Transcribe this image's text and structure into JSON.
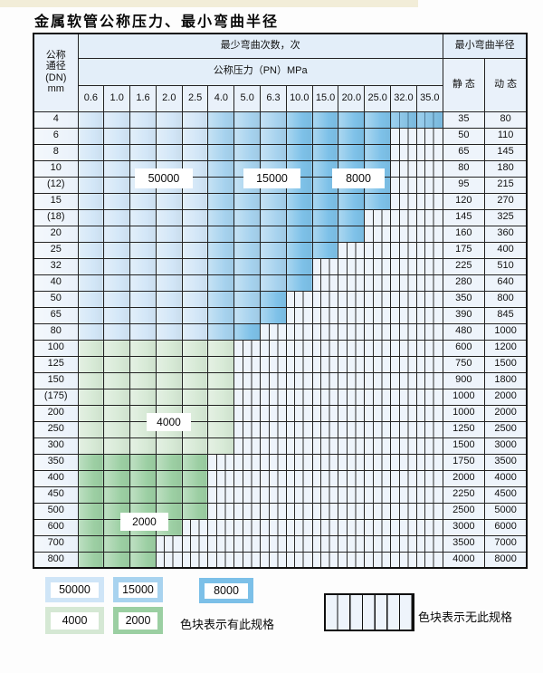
{
  "title": "金属软管公称压力、最小弯曲半径",
  "colors": {
    "cycles_50000": "#cfe5f7",
    "cycles_15000": "#a8d3ef",
    "cycles_8000": "#7cc0e8",
    "cycles_4000": "#d5e8d4",
    "cycles_2000": "#9bcfa2",
    "no_spec_bg": "#eef4fb",
    "grid_line": "#232323"
  },
  "table": {
    "dn_header_lines": [
      "公称",
      "通径",
      "(DN)",
      "mm"
    ],
    "cycles_header": "最少弯曲次数，次",
    "pressure_header": "公称压力（PN）MPa",
    "radius_header": "最小弯曲半径",
    "static_header": "静 态",
    "dynamic_header": "动 态",
    "pressure_columns": [
      "0.6",
      "1.0",
      "1.6",
      "2.0",
      "2.5",
      "4.0",
      "5.0",
      "6.3",
      "10.0",
      "15.0",
      "20.0",
      "25.0",
      "32.0",
      "35.0"
    ],
    "shade_codes": {
      "A": "50000 cycles",
      "B": "15000 cycles",
      "C": "8000 cycles",
      "G": "4000 cycles",
      "H": "2000 cycles",
      "X": "no specification (striped)"
    },
    "rows": [
      {
        "dn": "4",
        "bands": [
          [
            "A",
            5
          ],
          [
            "B",
            3
          ],
          [
            "C",
            6
          ]
        ],
        "overlay_cols": [
          12,
          13
        ],
        "static": "35",
        "dynamic": "80"
      },
      {
        "dn": "6",
        "bands": [
          [
            "A",
            5
          ],
          [
            "B",
            3
          ],
          [
            "C",
            4
          ],
          [
            "X",
            2
          ]
        ],
        "static": "50",
        "dynamic": "110"
      },
      {
        "dn": "8",
        "bands": [
          [
            "A",
            5
          ],
          [
            "B",
            3
          ],
          [
            "C",
            4
          ],
          [
            "X",
            2
          ]
        ],
        "static": "65",
        "dynamic": "145"
      },
      {
        "dn": "10",
        "bands": [
          [
            "A",
            5
          ],
          [
            "B",
            3
          ],
          [
            "C",
            4
          ],
          [
            "X",
            2
          ]
        ],
        "static": "80",
        "dynamic": "180"
      },
      {
        "dn": "(12)",
        "bands": [
          [
            "A",
            5
          ],
          [
            "B",
            3
          ],
          [
            "C",
            4
          ],
          [
            "X",
            2
          ]
        ],
        "static": "95",
        "dynamic": "215"
      },
      {
        "dn": "15",
        "bands": [
          [
            "A",
            5
          ],
          [
            "B",
            3
          ],
          [
            "C",
            4
          ],
          [
            "X",
            2
          ]
        ],
        "static": "120",
        "dynamic": "270"
      },
      {
        "dn": "(18)",
        "bands": [
          [
            "A",
            5
          ],
          [
            "B",
            3
          ],
          [
            "C",
            3
          ],
          [
            "X",
            3
          ]
        ],
        "static": "145",
        "dynamic": "325"
      },
      {
        "dn": "20",
        "bands": [
          [
            "A",
            5
          ],
          [
            "B",
            3
          ],
          [
            "C",
            3
          ],
          [
            "X",
            3
          ]
        ],
        "static": "160",
        "dynamic": "360"
      },
      {
        "dn": "25",
        "bands": [
          [
            "A",
            5
          ],
          [
            "B",
            3
          ],
          [
            "C",
            2
          ],
          [
            "X",
            4
          ]
        ],
        "static": "175",
        "dynamic": "400"
      },
      {
        "dn": "32",
        "bands": [
          [
            "A",
            5
          ],
          [
            "B",
            3
          ],
          [
            "C",
            1
          ],
          [
            "X",
            5
          ]
        ],
        "static": "225",
        "dynamic": "510"
      },
      {
        "dn": "40",
        "bands": [
          [
            "A",
            5
          ],
          [
            "B",
            3
          ],
          [
            "C",
            1
          ],
          [
            "X",
            5
          ]
        ],
        "static": "280",
        "dynamic": "640"
      },
      {
        "dn": "50",
        "bands": [
          [
            "A",
            5
          ],
          [
            "B",
            2
          ],
          [
            "C",
            1
          ],
          [
            "X",
            6
          ]
        ],
        "static": "350",
        "dynamic": "800"
      },
      {
        "dn": "65",
        "bands": [
          [
            "A",
            5
          ],
          [
            "B",
            2
          ],
          [
            "C",
            1
          ],
          [
            "X",
            6
          ]
        ],
        "static": "390",
        "dynamic": "845"
      },
      {
        "dn": "80",
        "bands": [
          [
            "A",
            5
          ],
          [
            "B",
            1
          ],
          [
            "C",
            1
          ],
          [
            "X",
            7
          ]
        ],
        "static": "480",
        "dynamic": "1000"
      },
      {
        "dn": "100",
        "bands": [
          [
            "G",
            6
          ],
          [
            "X",
            8
          ]
        ],
        "static": "600",
        "dynamic": "1200"
      },
      {
        "dn": "125",
        "bands": [
          [
            "G",
            6
          ],
          [
            "X",
            8
          ]
        ],
        "static": "750",
        "dynamic": "1500"
      },
      {
        "dn": "150",
        "bands": [
          [
            "G",
            6
          ],
          [
            "X",
            8
          ]
        ],
        "static": "900",
        "dynamic": "1800"
      },
      {
        "dn": "(175)",
        "bands": [
          [
            "G",
            6
          ],
          [
            "X",
            8
          ]
        ],
        "static": "1000",
        "dynamic": "2000"
      },
      {
        "dn": "200",
        "bands": [
          [
            "G",
            6
          ],
          [
            "X",
            8
          ]
        ],
        "static": "1000",
        "dynamic": "2000"
      },
      {
        "dn": "250",
        "bands": [
          [
            "G",
            6
          ],
          [
            "X",
            8
          ]
        ],
        "static": "1250",
        "dynamic": "2500"
      },
      {
        "dn": "300",
        "bands": [
          [
            "G",
            6
          ],
          [
            "X",
            8
          ]
        ],
        "static": "1500",
        "dynamic": "3000"
      },
      {
        "dn": "350",
        "bands": [
          [
            "H",
            5
          ],
          [
            "X",
            9
          ]
        ],
        "static": "1750",
        "dynamic": "3500"
      },
      {
        "dn": "400",
        "bands": [
          [
            "H",
            5
          ],
          [
            "X",
            9
          ]
        ],
        "static": "2000",
        "dynamic": "4000"
      },
      {
        "dn": "450",
        "bands": [
          [
            "H",
            5
          ],
          [
            "X",
            9
          ]
        ],
        "static": "2250",
        "dynamic": "4500"
      },
      {
        "dn": "500",
        "bands": [
          [
            "H",
            5
          ],
          [
            "X",
            9
          ]
        ],
        "static": "2500",
        "dynamic": "5000"
      },
      {
        "dn": "600",
        "bands": [
          [
            "H",
            4
          ],
          [
            "X",
            10
          ]
        ],
        "static": "3000",
        "dynamic": "6000"
      },
      {
        "dn": "700",
        "bands": [
          [
            "H",
            3
          ],
          [
            "X",
            11
          ]
        ],
        "static": "3500",
        "dynamic": "7000"
      },
      {
        "dn": "800",
        "bands": [
          [
            "H",
            3
          ],
          [
            "X",
            11
          ]
        ],
        "static": "4000",
        "dynamic": "8000"
      }
    ]
  },
  "floating_labels": [
    "50000",
    "15000",
    "8000",
    "4000",
    "2000"
  ],
  "legend": {
    "swatches": [
      {
        "label": "50000",
        "color": "#cfe5f7"
      },
      {
        "label": "15000",
        "color": "#a8d3ef"
      },
      {
        "label": "8000",
        "color": "#7cc0e8"
      },
      {
        "label": "4000",
        "color": "#d5e8d4"
      },
      {
        "label": "2000",
        "color": "#9bcfa2"
      }
    ],
    "has_spec_text": "色块表示有此规格",
    "no_spec_text": "色块表示无此规格"
  }
}
